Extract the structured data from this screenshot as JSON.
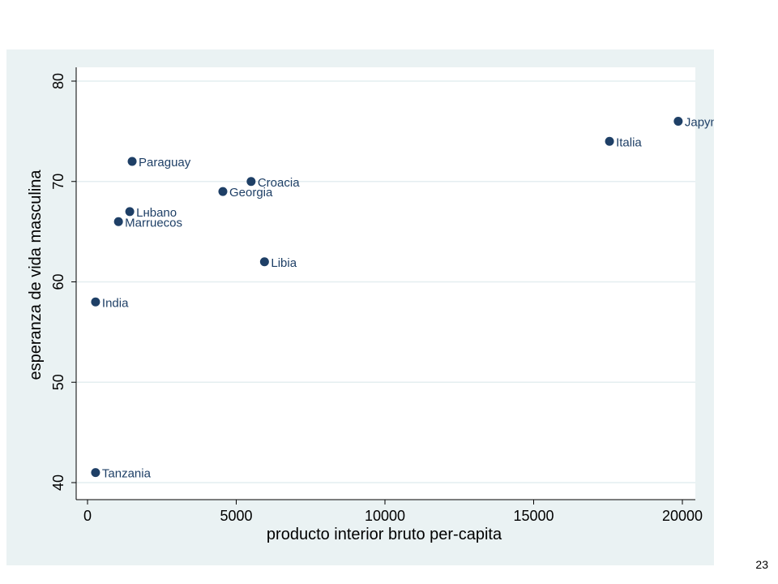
{
  "page_number": "23",
  "colors": {
    "panel_background": "#eaf2f3",
    "plot_background": "#ffffff",
    "gridline": "#e4eef0",
    "marker": "#1e3f66",
    "axis": "#000000"
  },
  "chart_data": {
    "type": "scatter",
    "xlabel": "producto interior bruto per-capita",
    "ylabel": "esperanza de vida masculina",
    "xlim": [
      0,
      20000
    ],
    "ylim": [
      40,
      80
    ],
    "x_ticks": [
      0,
      5000,
      10000,
      15000,
      20000
    ],
    "x_tick_labels": [
      "0",
      "5000",
      "10000",
      "15000",
      "20000"
    ],
    "y_ticks": [
      40,
      50,
      60,
      70,
      80
    ],
    "y_tick_labels": [
      "40",
      "50",
      "60",
      "70",
      "80"
    ],
    "grid": true,
    "points": [
      {
        "label": "Japyn",
        "x": 19860,
        "y": 76
      },
      {
        "label": "Italia",
        "x": 17550,
        "y": 74
      },
      {
        "label": "Paraguay",
        "x": 1500,
        "y": 72
      },
      {
        "label": "Croacia",
        "x": 5500,
        "y": 70
      },
      {
        "label": "Georgia",
        "x": 4550,
        "y": 69
      },
      {
        "label": "Lнbano",
        "x": 1420,
        "y": 67
      },
      {
        "label": "Marruecos",
        "x": 1040,
        "y": 66
      },
      {
        "label": "Libia",
        "x": 5950,
        "y": 62
      },
      {
        "label": "India",
        "x": 270,
        "y": 58
      },
      {
        "label": "Tanzania",
        "x": 270,
        "y": 41
      }
    ]
  }
}
